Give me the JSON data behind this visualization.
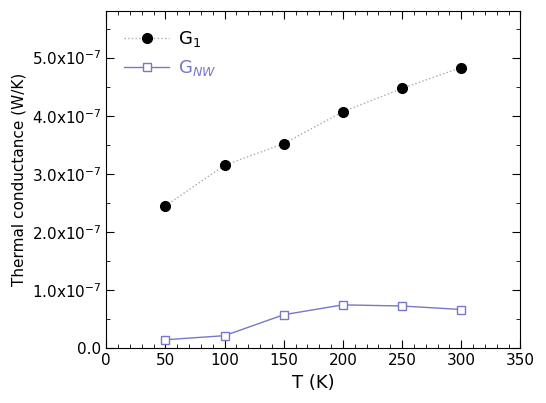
{
  "G1_T": [
    50,
    100,
    150,
    200,
    250,
    300
  ],
  "G1_vals": [
    2.45e-07,
    3.15e-07,
    3.52e-07,
    4.07e-07,
    4.47e-07,
    4.83e-07
  ],
  "GNW_T": [
    50,
    100,
    150,
    200,
    250,
    300
  ],
  "GNW_vals": [
    1.5e-08,
    2.2e-08,
    5.8e-08,
    7.5e-08,
    7.3e-08,
    6.7e-08
  ],
  "G1_color": "#aaaaaa",
  "GNW_color": "#7777cc",
  "xlabel": "T (K)",
  "ylabel": "Thermal conductance (W/K)",
  "xlim": [
    0,
    350
  ],
  "ylim": [
    0,
    5.8e-07
  ],
  "xticks": [
    0,
    50,
    100,
    150,
    200,
    250,
    300,
    350
  ],
  "ytick_vals": [
    0,
    1e-07,
    2e-07,
    3e-07,
    4e-07,
    5e-07
  ],
  "ytick_labels": [
    "0.0",
    "1.0x10$^{-7}$",
    "2.0x10$^{-7}$",
    "3.0x10$^{-7}$",
    "4.0x10$^{-7}$",
    "5.0x10$^{-7}$"
  ],
  "legend_G1": "G$_1$",
  "legend_GNW": "G$_{NW}$",
  "figsize": [
    5.46,
    4.03
  ],
  "dpi": 100
}
